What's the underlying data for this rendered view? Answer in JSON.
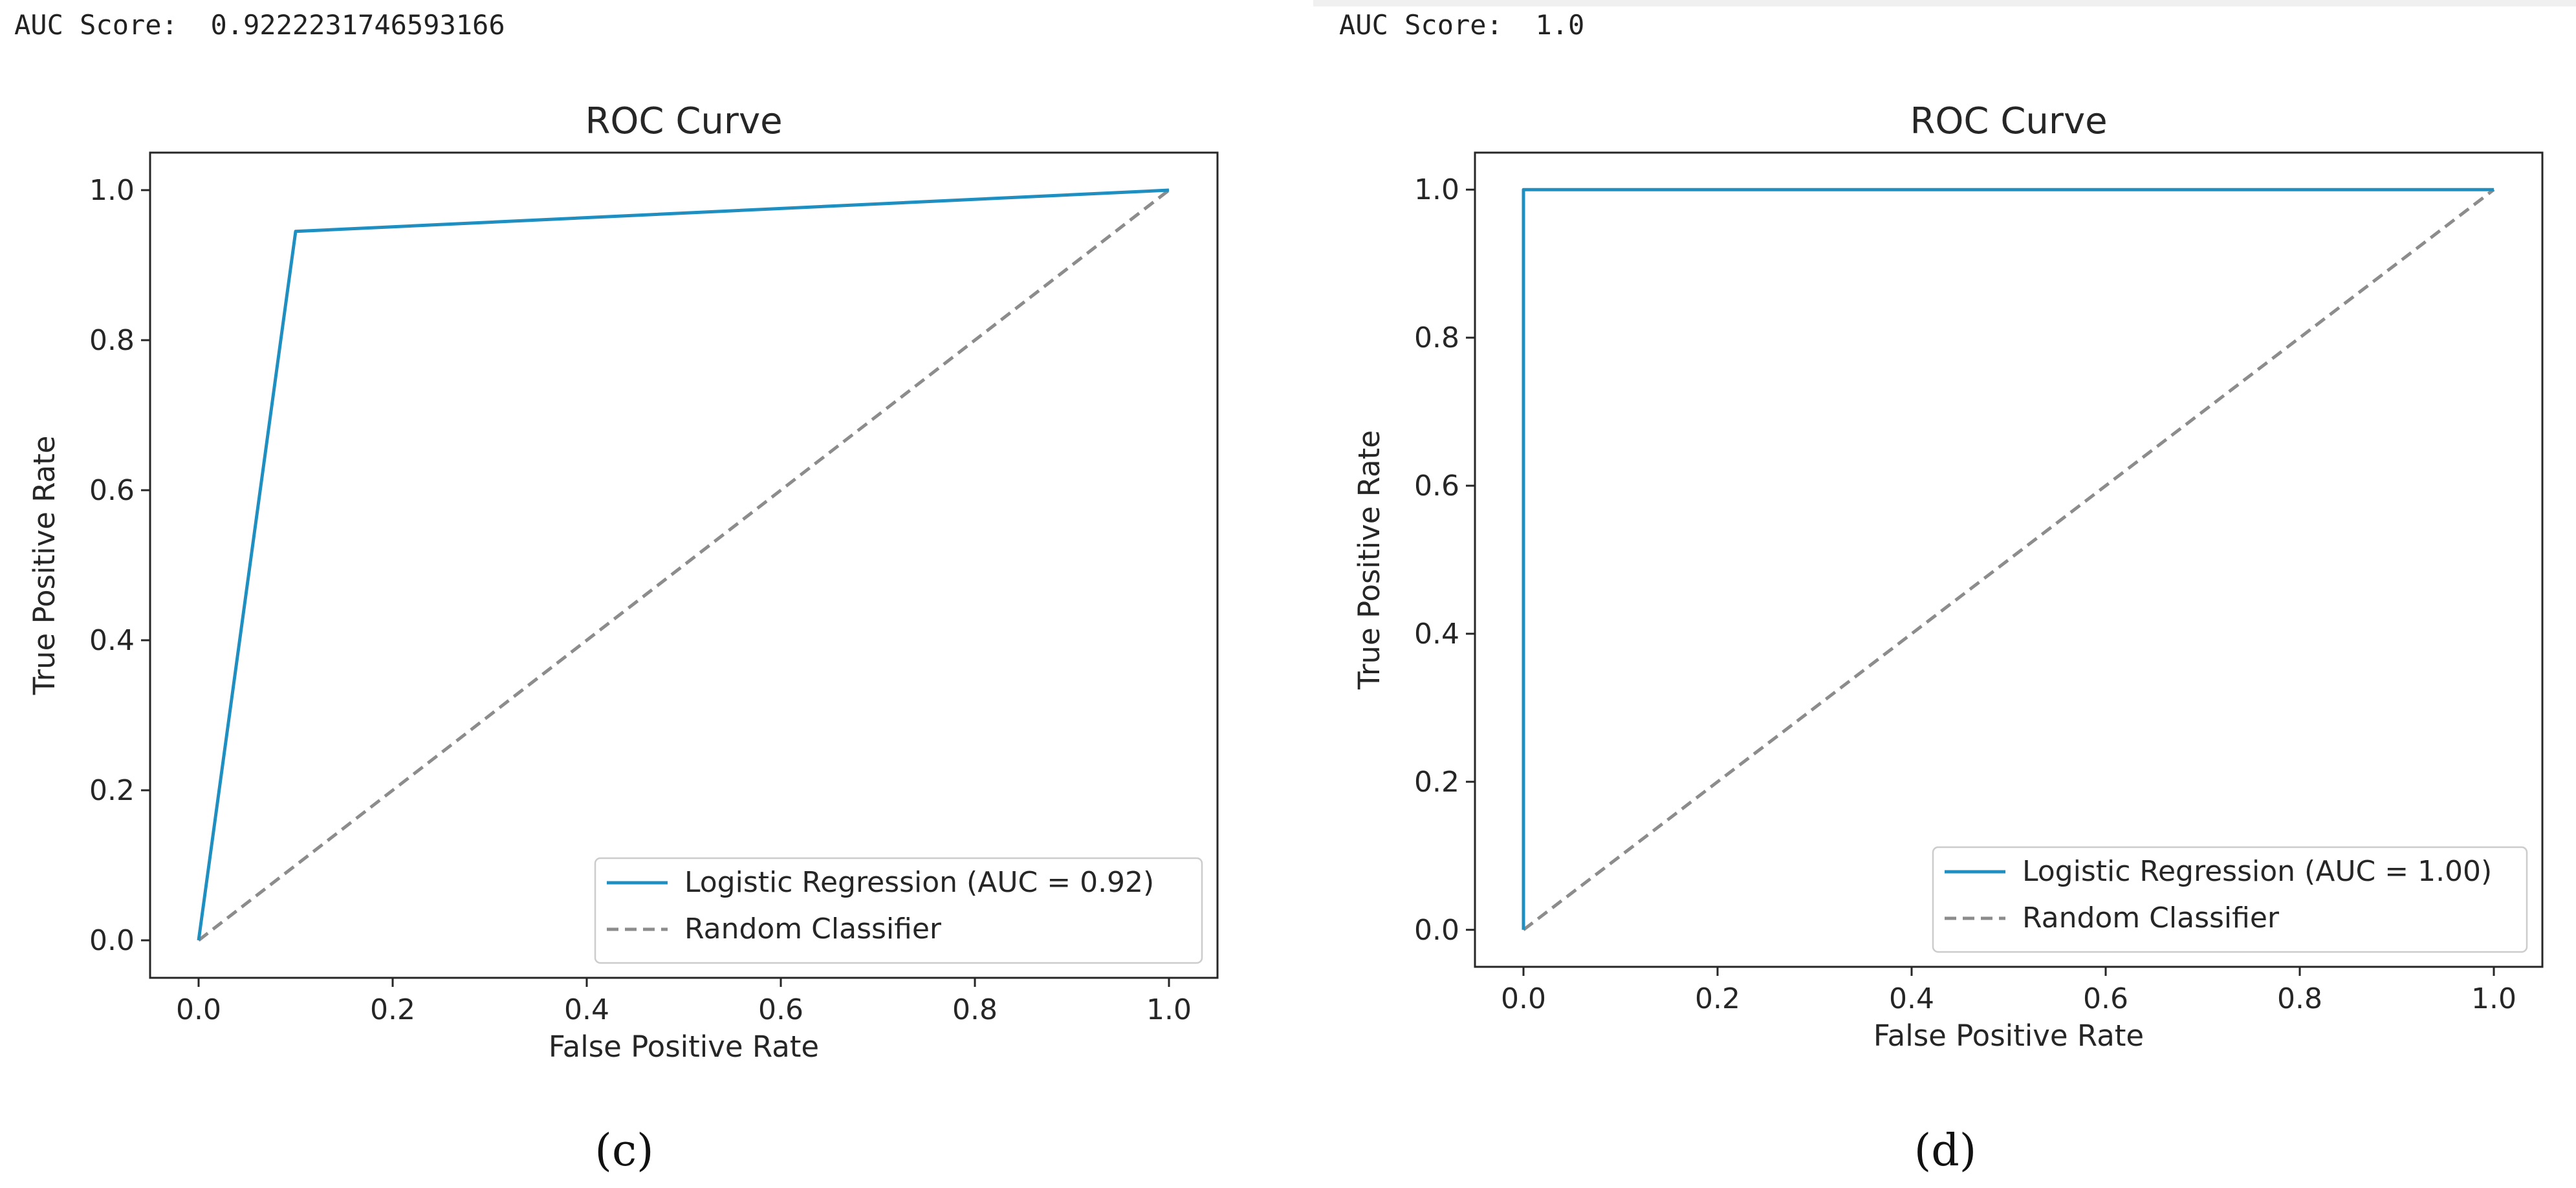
{
  "outputs": [
    {
      "label": "AUC Score:",
      "value": "0.9222231746593166"
    },
    {
      "label": "AUC Score:",
      "value": "1.0"
    }
  ],
  "panel_labels": [
    "(c)",
    "(d)"
  ],
  "colors": {
    "roc": "#1f8fc2",
    "random": "#8c8c8c",
    "axis": "#262626"
  },
  "chart_data": [
    {
      "type": "line",
      "title": "ROC Curve",
      "xlabel": "False Positive Rate",
      "ylabel": "True Positive Rate",
      "xlim": [
        -0.05,
        1.05
      ],
      "ylim": [
        -0.05,
        1.05
      ],
      "xticks": [
        "0.0",
        "0.2",
        "0.4",
        "0.6",
        "0.8",
        "1.0"
      ],
      "yticks": [
        "0.0",
        "0.2",
        "0.4",
        "0.6",
        "0.8",
        "1.0"
      ],
      "series": [
        {
          "name": "Logistic Regression (AUC = 0.92)",
          "style": "solid",
          "x": [
            0.0,
            0.1,
            1.0
          ],
          "y": [
            0.0,
            0.945,
            1.0
          ]
        },
        {
          "name": "Random Classifier",
          "style": "dashed",
          "x": [
            0.0,
            1.0
          ],
          "y": [
            0.0,
            1.0
          ]
        }
      ],
      "legend": "lower-right"
    },
    {
      "type": "line",
      "title": "ROC Curve",
      "xlabel": "False Positive Rate",
      "ylabel": "True Positive Rate",
      "xlim": [
        -0.05,
        1.05
      ],
      "ylim": [
        -0.05,
        1.05
      ],
      "xticks": [
        "0.0",
        "0.2",
        "0.4",
        "0.6",
        "0.8",
        "1.0"
      ],
      "yticks": [
        "0.0",
        "0.2",
        "0.4",
        "0.6",
        "0.8",
        "1.0"
      ],
      "series": [
        {
          "name": "Logistic Regression (AUC = 1.00)",
          "style": "solid",
          "x": [
            0.0,
            0.0,
            1.0
          ],
          "y": [
            0.0,
            1.0,
            1.0
          ]
        },
        {
          "name": "Random Classifier",
          "style": "dashed",
          "x": [
            0.0,
            1.0
          ],
          "y": [
            0.0,
            1.0
          ]
        }
      ],
      "legend": "lower-right"
    }
  ]
}
